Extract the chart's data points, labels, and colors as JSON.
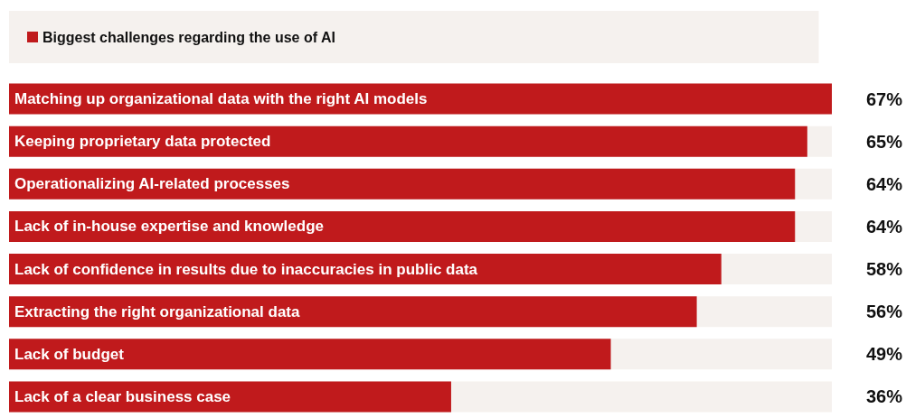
{
  "chart_data": {
    "type": "bar",
    "orientation": "horizontal",
    "legend": "top left",
    "categories": [
      "Matching up organizational data with the right AI models",
      "Keeping proprietary data protected",
      "Operationalizing AI-related processes",
      "Lack of in-house expertise and knowledge",
      "Lack of confidence in results due to inaccuracies in public data",
      "Extracting the right organizational data",
      "Lack of budget",
      "Lack of a clear business case"
    ],
    "series": [
      {
        "name": "Biggest challenges regarding the use of AI",
        "color": "#c01a1c",
        "values": [
          67,
          65,
          64,
          64,
          58,
          56,
          49,
          36
        ],
        "value_labels": [
          "67%",
          "65%",
          "64%",
          "64%",
          "58%",
          "56%",
          "49%",
          "36%"
        ]
      }
    ]
  }
}
